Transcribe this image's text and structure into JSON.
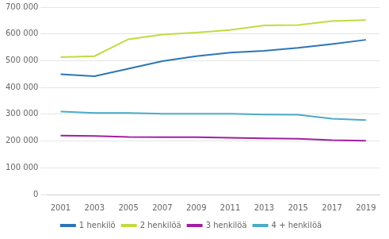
{
  "chart_data": {
    "type": "line",
    "x": [
      2001,
      2003,
      2005,
      2007,
      2009,
      2011,
      2013,
      2015,
      2017,
      2019
    ],
    "series": [
      {
        "name": "1 henkilö",
        "color": "#2E75B6",
        "values": [
          449000,
          442000,
          470000,
          498000,
          517000,
          530000,
          537000,
          548000,
          562000,
          578000
        ]
      },
      {
        "name": "2 henkilöä",
        "color": "#C5D942",
        "values": [
          513000,
          517000,
          580000,
          598000,
          605000,
          615000,
          632000,
          633000,
          648000,
          652000
        ]
      },
      {
        "name": "3 henkilöä",
        "color": "#A020A0",
        "values": [
          220000,
          219000,
          215000,
          214000,
          214000,
          212000,
          210000,
          208000,
          203000,
          201000
        ]
      },
      {
        "name": "4 + henkilöä",
        "color": "#4BACC6",
        "values": [
          310000,
          305000,
          305000,
          302000,
          302000,
          302000,
          299000,
          298000,
          283000,
          278000
        ]
      }
    ],
    "xlim": [
      2000.2,
      2019.8
    ],
    "xticks": [
      2001,
      2003,
      2005,
      2007,
      2009,
      2011,
      2013,
      2015,
      2017,
      2019
    ],
    "ylim": [
      0,
      700000
    ],
    "yticks": [
      0,
      {
        "value": 100000,
        "label": "100 000"
      },
      {
        "value": 200000,
        "label": "200 000"
      },
      {
        "value": 300000,
        "label": "300 000"
      },
      {
        "value": 400000,
        "label": "400 000"
      },
      {
        "value": 500000,
        "label": "500 000"
      },
      {
        "value": 600000,
        "label": "600 000"
      },
      {
        "value": 700000,
        "label": "700 000"
      }
    ],
    "grid": true,
    "legend": "bottom"
  }
}
